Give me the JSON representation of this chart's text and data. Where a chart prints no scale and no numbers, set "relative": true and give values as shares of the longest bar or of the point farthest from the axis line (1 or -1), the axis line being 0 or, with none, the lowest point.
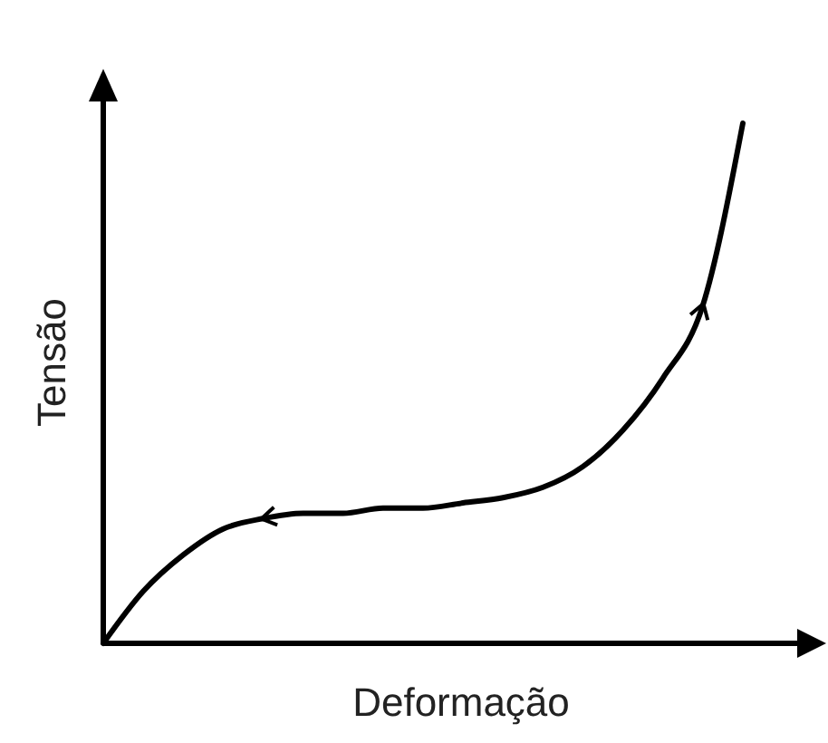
{
  "chart_data": {
    "type": "line",
    "relative": true,
    "xlabel": "Deformação",
    "ylabel": "Tensão",
    "categories": [
      null,
      null,
      null,
      null,
      null,
      null,
      null,
      null,
      null,
      null,
      null,
      null,
      null,
      null,
      null,
      null,
      null
    ],
    "series": [
      {
        "color": "#000000",
        "values": [
          0,
          0.1,
          0.17,
          0.22,
          0.24,
          0.25,
          0.25,
          0.26,
          0.26,
          0.27,
          0.28,
          0.3,
          0.34,
          0.41,
          0.51,
          0.65,
          1
        ]
      }
    ]
  }
}
